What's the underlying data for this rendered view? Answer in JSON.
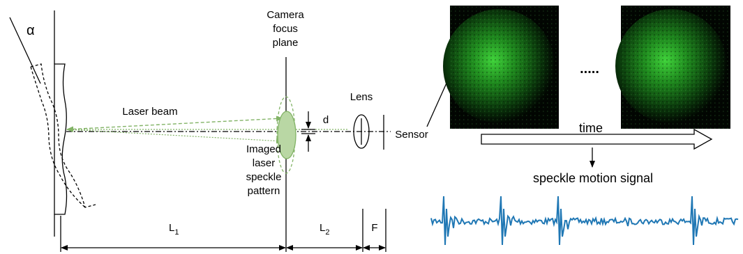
{
  "labels": {
    "alpha": "α",
    "camera_focus_plane": [
      "Camera",
      "focus",
      "plane"
    ],
    "laser_beam": "Laser beam",
    "lens": "Lens",
    "d": "d",
    "sensor": "Sensor",
    "imaged_pattern": [
      "Imaged",
      "laser",
      "speckle",
      "pattern"
    ],
    "l1": {
      "main": "L",
      "sub": "1"
    },
    "l2": {
      "main": "L",
      "sub": "2"
    },
    "f": "F",
    "ellipsis": ".....",
    "time": "time",
    "signal": "speckle motion signal"
  }
}
